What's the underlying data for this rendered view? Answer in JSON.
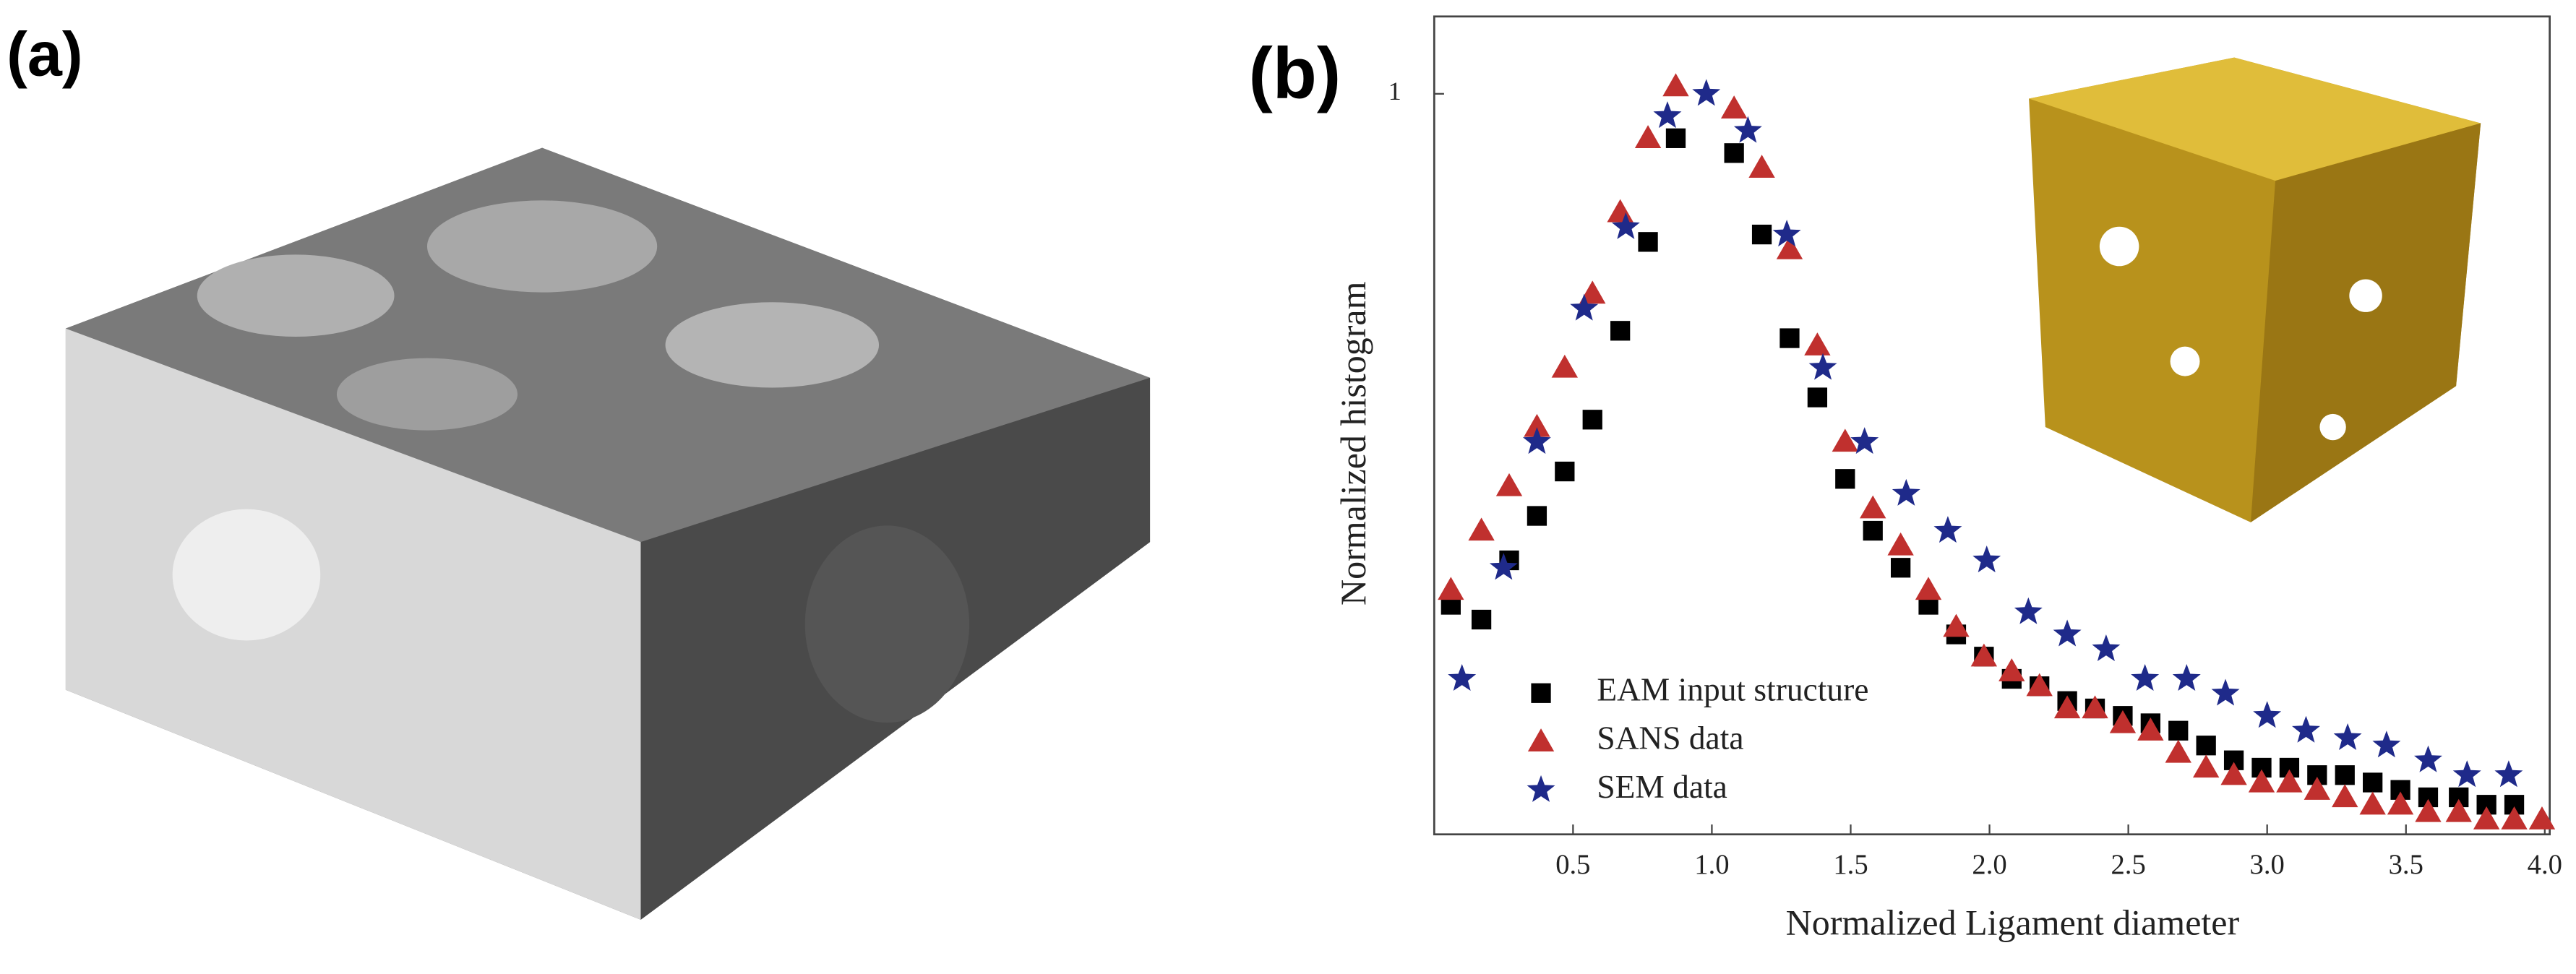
{
  "panel_a_label": "(a)",
  "chart_data": {
    "type": "scatter",
    "panel_label": "(b)",
    "x_label": "Normalized Ligament diameter",
    "y_label": "Normalized histogram",
    "xlim": [
      0,
      4.0
    ],
    "ylim": [
      0,
      1.1
    ],
    "xticks": [
      0.5,
      {
        "value": 1,
        "label": "1.0"
      },
      1.5,
      {
        "value": 2,
        "label": "2.0"
      },
      2.5,
      {
        "value": 3,
        "label": "3.0"
      },
      3.5,
      {
        "value": 4,
        "label": "4.0"
      }
    ],
    "yticks": [
      1
    ],
    "legend": "lower-left",
    "series": [
      {
        "name": "EAM input structure",
        "color": "#000000",
        "marker": "square",
        "x": [
          0.06,
          0.17,
          0.27,
          0.37,
          0.47,
          0.57,
          0.67,
          0.77,
          0.87,
          1.08,
          1.18,
          1.28,
          1.38,
          1.48,
          1.58,
          1.68,
          1.78,
          1.88,
          1.98,
          2.08,
          2.18,
          2.28,
          2.38,
          2.48,
          2.58,
          2.68,
          2.78,
          2.88,
          2.98,
          3.08,
          3.18,
          3.28,
          3.38,
          3.48,
          3.58,
          3.69,
          3.79,
          3.89
        ],
        "values": [
          0.31,
          0.29,
          0.37,
          0.43,
          0.49,
          0.56,
          0.68,
          0.8,
          0.94,
          0.92,
          0.81,
          0.67,
          0.59,
          0.48,
          0.41,
          0.36,
          0.31,
          0.27,
          0.24,
          0.21,
          0.2,
          0.18,
          0.17,
          0.16,
          0.15,
          0.14,
          0.12,
          0.1,
          0.09,
          0.09,
          0.08,
          0.08,
          0.07,
          0.06,
          0.05,
          0.05,
          0.04,
          0.04
        ]
      },
      {
        "name": "SANS data",
        "color": "#c0302e",
        "marker": "triangle",
        "x": [
          0.06,
          0.17,
          0.27,
          0.37,
          0.47,
          0.57,
          0.67,
          0.77,
          0.87,
          1.08,
          1.18,
          1.28,
          1.38,
          1.48,
          1.58,
          1.68,
          1.78,
          1.88,
          1.98,
          2.08,
          2.18,
          2.28,
          2.38,
          2.48,
          2.58,
          2.68,
          2.78,
          2.88,
          2.98,
          3.08,
          3.18,
          3.28,
          3.38,
          3.48,
          3.58,
          3.69,
          3.79,
          3.89,
          3.99
        ],
        "values": [
          0.33,
          0.41,
          0.47,
          0.55,
          0.63,
          0.73,
          0.84,
          0.94,
          1.01,
          0.98,
          0.9,
          0.79,
          0.66,
          0.53,
          0.44,
          0.39,
          0.33,
          0.28,
          0.24,
          0.22,
          0.2,
          0.17,
          0.17,
          0.15,
          0.14,
          0.11,
          0.09,
          0.08,
          0.07,
          0.07,
          0.06,
          0.05,
          0.04,
          0.04,
          0.03,
          0.03,
          0.02,
          0.02,
          0.02
        ]
      },
      {
        "name": "SEM data",
        "color": "#1f2a8a",
        "marker": "star",
        "x": [
          0.1,
          0.25,
          0.37,
          0.54,
          0.69,
          0.84,
          0.98,
          1.13,
          1.27,
          1.4,
          1.55,
          1.7,
          1.85,
          1.99,
          2.14,
          2.28,
          2.42,
          2.56,
          2.71,
          2.85,
          3.0,
          3.14,
          3.29,
          3.43,
          3.58,
          3.72,
          3.87
        ],
        "values": [
          0.21,
          0.36,
          0.53,
          0.71,
          0.82,
          0.97,
          1.0,
          0.95,
          0.81,
          0.63,
          0.53,
          0.46,
          0.41,
          0.37,
          0.3,
          0.27,
          0.25,
          0.21,
          0.21,
          0.19,
          0.16,
          0.14,
          0.13,
          0.12,
          0.1,
          0.08,
          0.08
        ]
      }
    ]
  }
}
